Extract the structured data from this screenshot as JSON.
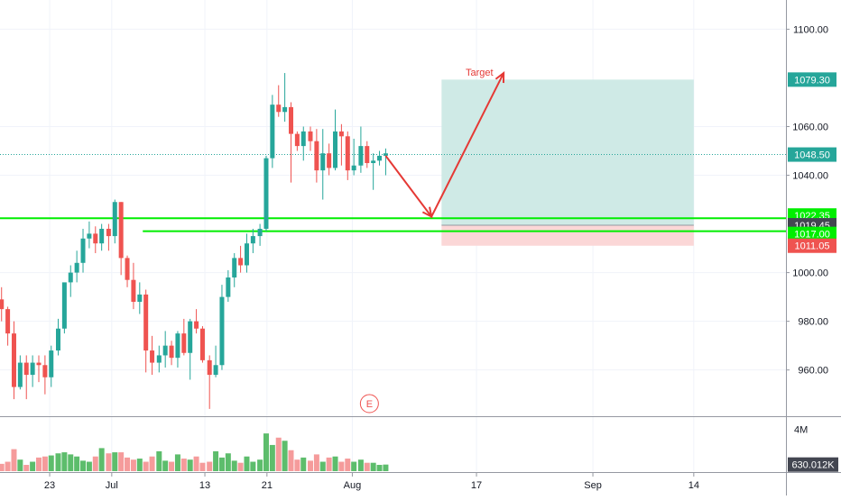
{
  "chart_data": {
    "type": "candlestick",
    "price_axis": {
      "ticks": [
        {
          "value": 1100,
          "label": "1100.00"
        },
        {
          "value": 1060,
          "label": "1060.00"
        },
        {
          "value": 1040,
          "label": "1040.00"
        },
        {
          "value": 1000,
          "label": "1000.00"
        },
        {
          "value": 980,
          "label": "980.00"
        },
        {
          "value": 960,
          "label": "960.00"
        }
      ],
      "range": [
        941,
        1112
      ]
    },
    "time_axis": {
      "labels": [
        {
          "label": "23",
          "day": 23
        },
        {
          "label": "Jul",
          "day": 31
        },
        {
          "label": "13",
          "day": 43
        },
        {
          "label": "21",
          "day": 51
        },
        {
          "label": "Aug",
          "day": 62
        },
        {
          "label": "17",
          "day": 78
        },
        {
          "label": "Sep",
          "day": 93
        },
        {
          "label": "14",
          "day": 106
        }
      ]
    },
    "volume_axis": {
      "ticks": [
        {
          "value": 4.0,
          "label": "4M"
        }
      ],
      "last_label": "630.012K",
      "unit": "M",
      "range": [
        0,
        4.9
      ]
    },
    "candles": [
      [
        1.3,
        967,
        971,
        960,
        966
      ],
      [
        2.1,
        966,
        966,
        960,
        961
      ],
      [
        2.9,
        961,
        968,
        958,
        965
      ],
      [
        3.7,
        965,
        974,
        963,
        972
      ],
      [
        4.6,
        972,
        976,
        966,
        969
      ],
      [
        5.4,
        969,
        991,
        968,
        983
      ],
      [
        6.2,
        983,
        993,
        976,
        988
      ],
      [
        7.0,
        988,
        989,
        962,
        967
      ],
      [
        7.8,
        967,
        976,
        963,
        973
      ],
      [
        8.6,
        973,
        981,
        968,
        980
      ],
      [
        9.4,
        980,
        989,
        974,
        985
      ],
      [
        10.2,
        985,
        985,
        975,
        978
      ],
      [
        11.1,
        978,
        996,
        976,
        993
      ],
      [
        11.9,
        993,
        1008,
        990,
        1000
      ],
      [
        12.7,
        1000,
        1006,
        994,
        1004
      ],
      [
        13.5,
        1004,
        1027,
        994,
        1008
      ],
      [
        14.3,
        1008,
        1008,
        986,
        991
      ],
      [
        15.1,
        991,
        996,
        980,
        983
      ],
      [
        15.9,
        983,
        992,
        976,
        989
      ],
      [
        16.8,
        989,
        994,
        980,
        985
      ],
      [
        17.6,
        985,
        986,
        970,
        975
      ],
      [
        18.4,
        975,
        980,
        948,
        953
      ],
      [
        19.2,
        953,
        966,
        952,
        963
      ],
      [
        20.0,
        963,
        966,
        948,
        958
      ],
      [
        20.8,
        958,
        966,
        953,
        963
      ],
      [
        21.6,
        963,
        966,
        955,
        962
      ],
      [
        22.4,
        962,
        966,
        950,
        957
      ],
      [
        23.2,
        957,
        970,
        953,
        968
      ],
      [
        24.1,
        968,
        981,
        966,
        977
      ],
      [
        24.9,
        977,
        995,
        975,
        996
      ],
      [
        25.7,
        996,
        1003,
        990,
        1000
      ],
      [
        26.5,
        1000,
        1009,
        996,
        1004
      ],
      [
        27.3,
        1004,
        1018,
        1000,
        1014
      ],
      [
        28.1,
        1014,
        1021,
        1010,
        1016
      ],
      [
        28.9,
        1016,
        1019,
        1008,
        1012
      ],
      [
        29.7,
        1012,
        1020,
        1009,
        1018
      ],
      [
        30.6,
        1018,
        1020,
        1009,
        1015
      ],
      [
        31.4,
        1015,
        1030,
        1012,
        1029
      ],
      [
        32.2,
        1029,
        1029,
        999,
        1006
      ],
      [
        33.0,
        1006,
        1007,
        994,
        997
      ],
      [
        33.8,
        997,
        1004,
        985,
        988
      ],
      [
        34.6,
        988,
        996,
        983,
        991
      ],
      [
        35.4,
        991,
        993,
        959,
        968
      ],
      [
        36.2,
        968,
        974,
        958,
        963
      ],
      [
        37.1,
        963,
        970,
        959,
        966
      ],
      [
        37.9,
        966,
        976,
        961,
        970
      ],
      [
        38.7,
        970,
        972,
        962,
        965
      ],
      [
        39.5,
        965,
        976,
        961,
        975
      ],
      [
        40.3,
        975,
        981,
        966,
        967
      ],
      [
        41.1,
        967,
        981,
        956,
        980
      ],
      [
        41.9,
        980,
        985,
        975,
        977
      ],
      [
        42.7,
        977,
        978,
        963,
        964
      ],
      [
        43.6,
        964,
        966,
        944,
        958
      ],
      [
        44.4,
        958,
        970,
        957,
        962
      ],
      [
        45.2,
        962,
        995,
        960,
        990
      ],
      [
        46.0,
        990,
        1001,
        988,
        998
      ],
      [
        46.8,
        998,
        1008,
        994,
        1006
      ],
      [
        47.6,
        1006,
        1011,
        1000,
        1003
      ],
      [
        48.4,
        1003,
        1016,
        1000,
        1012
      ],
      [
        49.2,
        1012,
        1018,
        1008,
        1015
      ],
      [
        50.1,
        1015,
        1020,
        1011,
        1018
      ],
      [
        50.9,
        1018,
        1048,
        1017,
        1047
      ],
      [
        51.7,
        1047,
        1073,
        1043,
        1069
      ],
      [
        52.5,
        1069,
        1077,
        1064,
        1066
      ],
      [
        53.3,
        1066,
        1082,
        1062,
        1068
      ],
      [
        54.1,
        1068,
        1070,
        1037,
        1057
      ],
      [
        54.9,
        1057,
        1058,
        1050,
        1052
      ],
      [
        55.7,
        1052,
        1060,
        1046,
        1058
      ],
      [
        56.6,
        1058,
        1060,
        1050,
        1054
      ],
      [
        57.4,
        1054,
        1059,
        1037,
        1042
      ],
      [
        58.2,
        1042,
        1059,
        1030,
        1049
      ],
      [
        59.0,
        1049,
        1053,
        1040,
        1043
      ],
      [
        59.8,
        1043,
        1067,
        1042,
        1058
      ],
      [
        60.6,
        1058,
        1061,
        1044,
        1056
      ],
      [
        61.4,
        1056,
        1058,
        1038,
        1042
      ],
      [
        62.2,
        1042,
        1055,
        1040,
        1044
      ],
      [
        63.1,
        1044,
        1060,
        1041,
        1052
      ],
      [
        63.9,
        1052,
        1054,
        1043,
        1045
      ],
      [
        64.7,
        1045,
        1049,
        1034,
        1046
      ],
      [
        65.5,
        1046,
        1050,
        1044,
        1048
      ],
      [
        66.3,
        1048,
        1051,
        1040,
        1049
      ]
    ],
    "volume": [
      [
        1.3,
        0.8
      ],
      [
        2.1,
        1.1
      ],
      [
        2.9,
        0.9
      ],
      [
        3.7,
        0.6
      ],
      [
        4.6,
        1.1
      ],
      [
        5.4,
        1.0
      ],
      [
        6.2,
        1.3
      ],
      [
        7.0,
        0.7
      ],
      [
        7.8,
        0.9
      ],
      [
        8.6,
        0.5
      ],
      [
        9.4,
        0.8
      ],
      [
        10.2,
        0.6
      ],
      [
        11.1,
        0.9
      ],
      [
        11.9,
        0.8
      ],
      [
        12.7,
        0.6
      ],
      [
        13.5,
        2.2
      ],
      [
        14.3,
        1.0
      ],
      [
        15.1,
        1.0
      ],
      [
        15.9,
        1.3
      ],
      [
        16.8,
        0.7
      ],
      [
        17.6,
        0.9
      ],
      [
        18.4,
        2.1
      ],
      [
        19.2,
        1.1
      ],
      [
        20.0,
        0.6
      ],
      [
        20.8,
        0.9
      ],
      [
        21.6,
        1.3
      ],
      [
        22.4,
        1.4
      ],
      [
        23.2,
        1.5
      ],
      [
        24.1,
        1.7
      ],
      [
        24.9,
        1.8
      ],
      [
        25.7,
        1.6
      ],
      [
        26.5,
        1.4
      ],
      [
        27.3,
        1.0
      ],
      [
        28.1,
        0.9
      ],
      [
        28.9,
        1.4
      ],
      [
        29.7,
        2.2
      ],
      [
        30.6,
        1.7
      ],
      [
        31.4,
        1.8
      ],
      [
        32.2,
        1.8
      ],
      [
        33.0,
        1.3
      ],
      [
        33.8,
        1.1
      ],
      [
        34.6,
        1.2
      ],
      [
        35.4,
        0.9
      ],
      [
        36.2,
        1.4
      ],
      [
        37.1,
        1.9
      ],
      [
        37.9,
        1.0
      ],
      [
        38.7,
        0.9
      ],
      [
        39.5,
        1.6
      ],
      [
        40.3,
        1.2
      ],
      [
        41.1,
        1.1
      ],
      [
        41.9,
        1.4
      ],
      [
        42.7,
        0.8
      ],
      [
        43.6,
        0.9
      ],
      [
        44.4,
        1.9
      ],
      [
        45.2,
        1.3
      ],
      [
        46.0,
        1.7
      ],
      [
        46.8,
        1.0
      ],
      [
        47.6,
        0.8
      ],
      [
        48.4,
        1.4
      ],
      [
        49.2,
        0.9
      ],
      [
        50.1,
        1.1
      ],
      [
        50.9,
        3.6
      ],
      [
        51.7,
        2.5
      ],
      [
        52.5,
        3.2
      ],
      [
        53.3,
        2.9
      ],
      [
        54.1,
        2.0
      ],
      [
        54.9,
        1.1
      ],
      [
        55.7,
        1.3
      ],
      [
        56.6,
        1.0
      ],
      [
        57.4,
        1.6
      ],
      [
        58.2,
        0.9
      ],
      [
        59.0,
        1.3
      ],
      [
        59.8,
        1.4
      ],
      [
        60.6,
        0.9
      ],
      [
        61.4,
        1.2
      ],
      [
        62.2,
        0.9
      ],
      [
        63.1,
        1.1
      ],
      [
        63.9,
        0.8
      ],
      [
        64.7,
        0.8
      ],
      [
        65.5,
        0.6
      ],
      [
        66.3,
        0.63
      ]
    ],
    "horizontal_lines": [
      {
        "price": 1022.35,
        "color": "#00ee00"
      },
      {
        "price": 1017.0,
        "color": "#00ee00"
      }
    ],
    "last_price": 1048.5,
    "position": {
      "type": "long",
      "start_day": 73.5,
      "end_day": 106,
      "target": 1079.3,
      "entry": 1019.45,
      "stop": 1011.05
    },
    "projection_path": [
      {
        "day": 66.3,
        "price": 1048
      },
      {
        "day": 72.2,
        "price": 1023
      },
      {
        "day": 81.5,
        "price": 1082
      }
    ],
    "annotations": [
      {
        "text": "Target",
        "day": 76.6,
        "price": 1081
      }
    ],
    "price_labels": [
      {
        "text": "1079.30",
        "bg": "#26a69a",
        "price": 1079.3
      },
      {
        "text": "1048.50",
        "bg": "#26a69a",
        "price": 1048.5
      },
      {
        "text": "1022.35",
        "bg": "#00ee00",
        "price": 1022.35
      },
      {
        "text": "1019.45",
        "bg": "#434651",
        "price": 1019.45
      },
      {
        "text": "1017.00",
        "bg": "#00ee00",
        "price": 1017.0
      },
      {
        "text": "1011.05",
        "bg": "#ef5350",
        "price": 1011.05
      }
    ],
    "earnings_marker": {
      "text": "E",
      "day": 64.2
    },
    "colors": {
      "up": "#26a69a",
      "down": "#ef5350",
      "up_volume": "#5dbd6c",
      "down_volume": "#f59b9b",
      "target_zone": "#cfeae6",
      "stop_zone": "#fbd7d7",
      "projection": "#e53935"
    }
  }
}
